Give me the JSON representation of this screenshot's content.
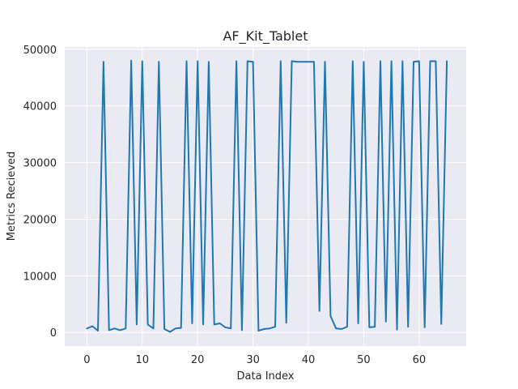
{
  "chart_data": {
    "type": "line",
    "title": "AF_Kit_Tablet",
    "xlabel": "Data Index",
    "ylabel": "Metrics Recieved",
    "xlim": [
      -4,
      68.5
    ],
    "ylim": [
      -2400,
      50400
    ],
    "xticks": [
      0,
      10,
      20,
      30,
      40,
      50,
      60
    ],
    "yticks": [
      0,
      10000,
      20000,
      30000,
      40000,
      50000
    ],
    "grid": true,
    "background": "#eaeaf2",
    "line_color": "#1f77b4",
    "series": [
      {
        "x": [
          0,
          1,
          2,
          3,
          4,
          5,
          6,
          7,
          8,
          9,
          10,
          11,
          12,
          13,
          14,
          15,
          16,
          17,
          18,
          19,
          20,
          21,
          22,
          23,
          24,
          25,
          26,
          27,
          28,
          29,
          30,
          31,
          32,
          33,
          34,
          35,
          36,
          37,
          38,
          39,
          40,
          41,
          42,
          43,
          44,
          45,
          46,
          47,
          48,
          49,
          50,
          51,
          52,
          53,
          54,
          55,
          56,
          57,
          58,
          59,
          60,
          61,
          62,
          63,
          64,
          65
        ],
        "y": [
          700,
          1100,
          300,
          47800,
          400,
          700,
          400,
          700,
          48000,
          1400,
          47900,
          1400,
          700,
          47800,
          600,
          100,
          700,
          800,
          47900,
          1600,
          47900,
          1400,
          47800,
          1400,
          1600,
          900,
          700,
          47900,
          400,
          47900,
          47800,
          300,
          600,
          700,
          1000,
          47900,
          1700,
          47900,
          47800,
          47800,
          47800,
          47800,
          3800,
          47800,
          2900,
          700,
          600,
          1000,
          47900,
          1600,
          47800,
          900,
          1000,
          47900,
          1900,
          47900,
          500,
          47900,
          1000,
          47800,
          47900,
          900,
          47900,
          47900,
          1500,
          47900
        ]
      }
    ]
  }
}
